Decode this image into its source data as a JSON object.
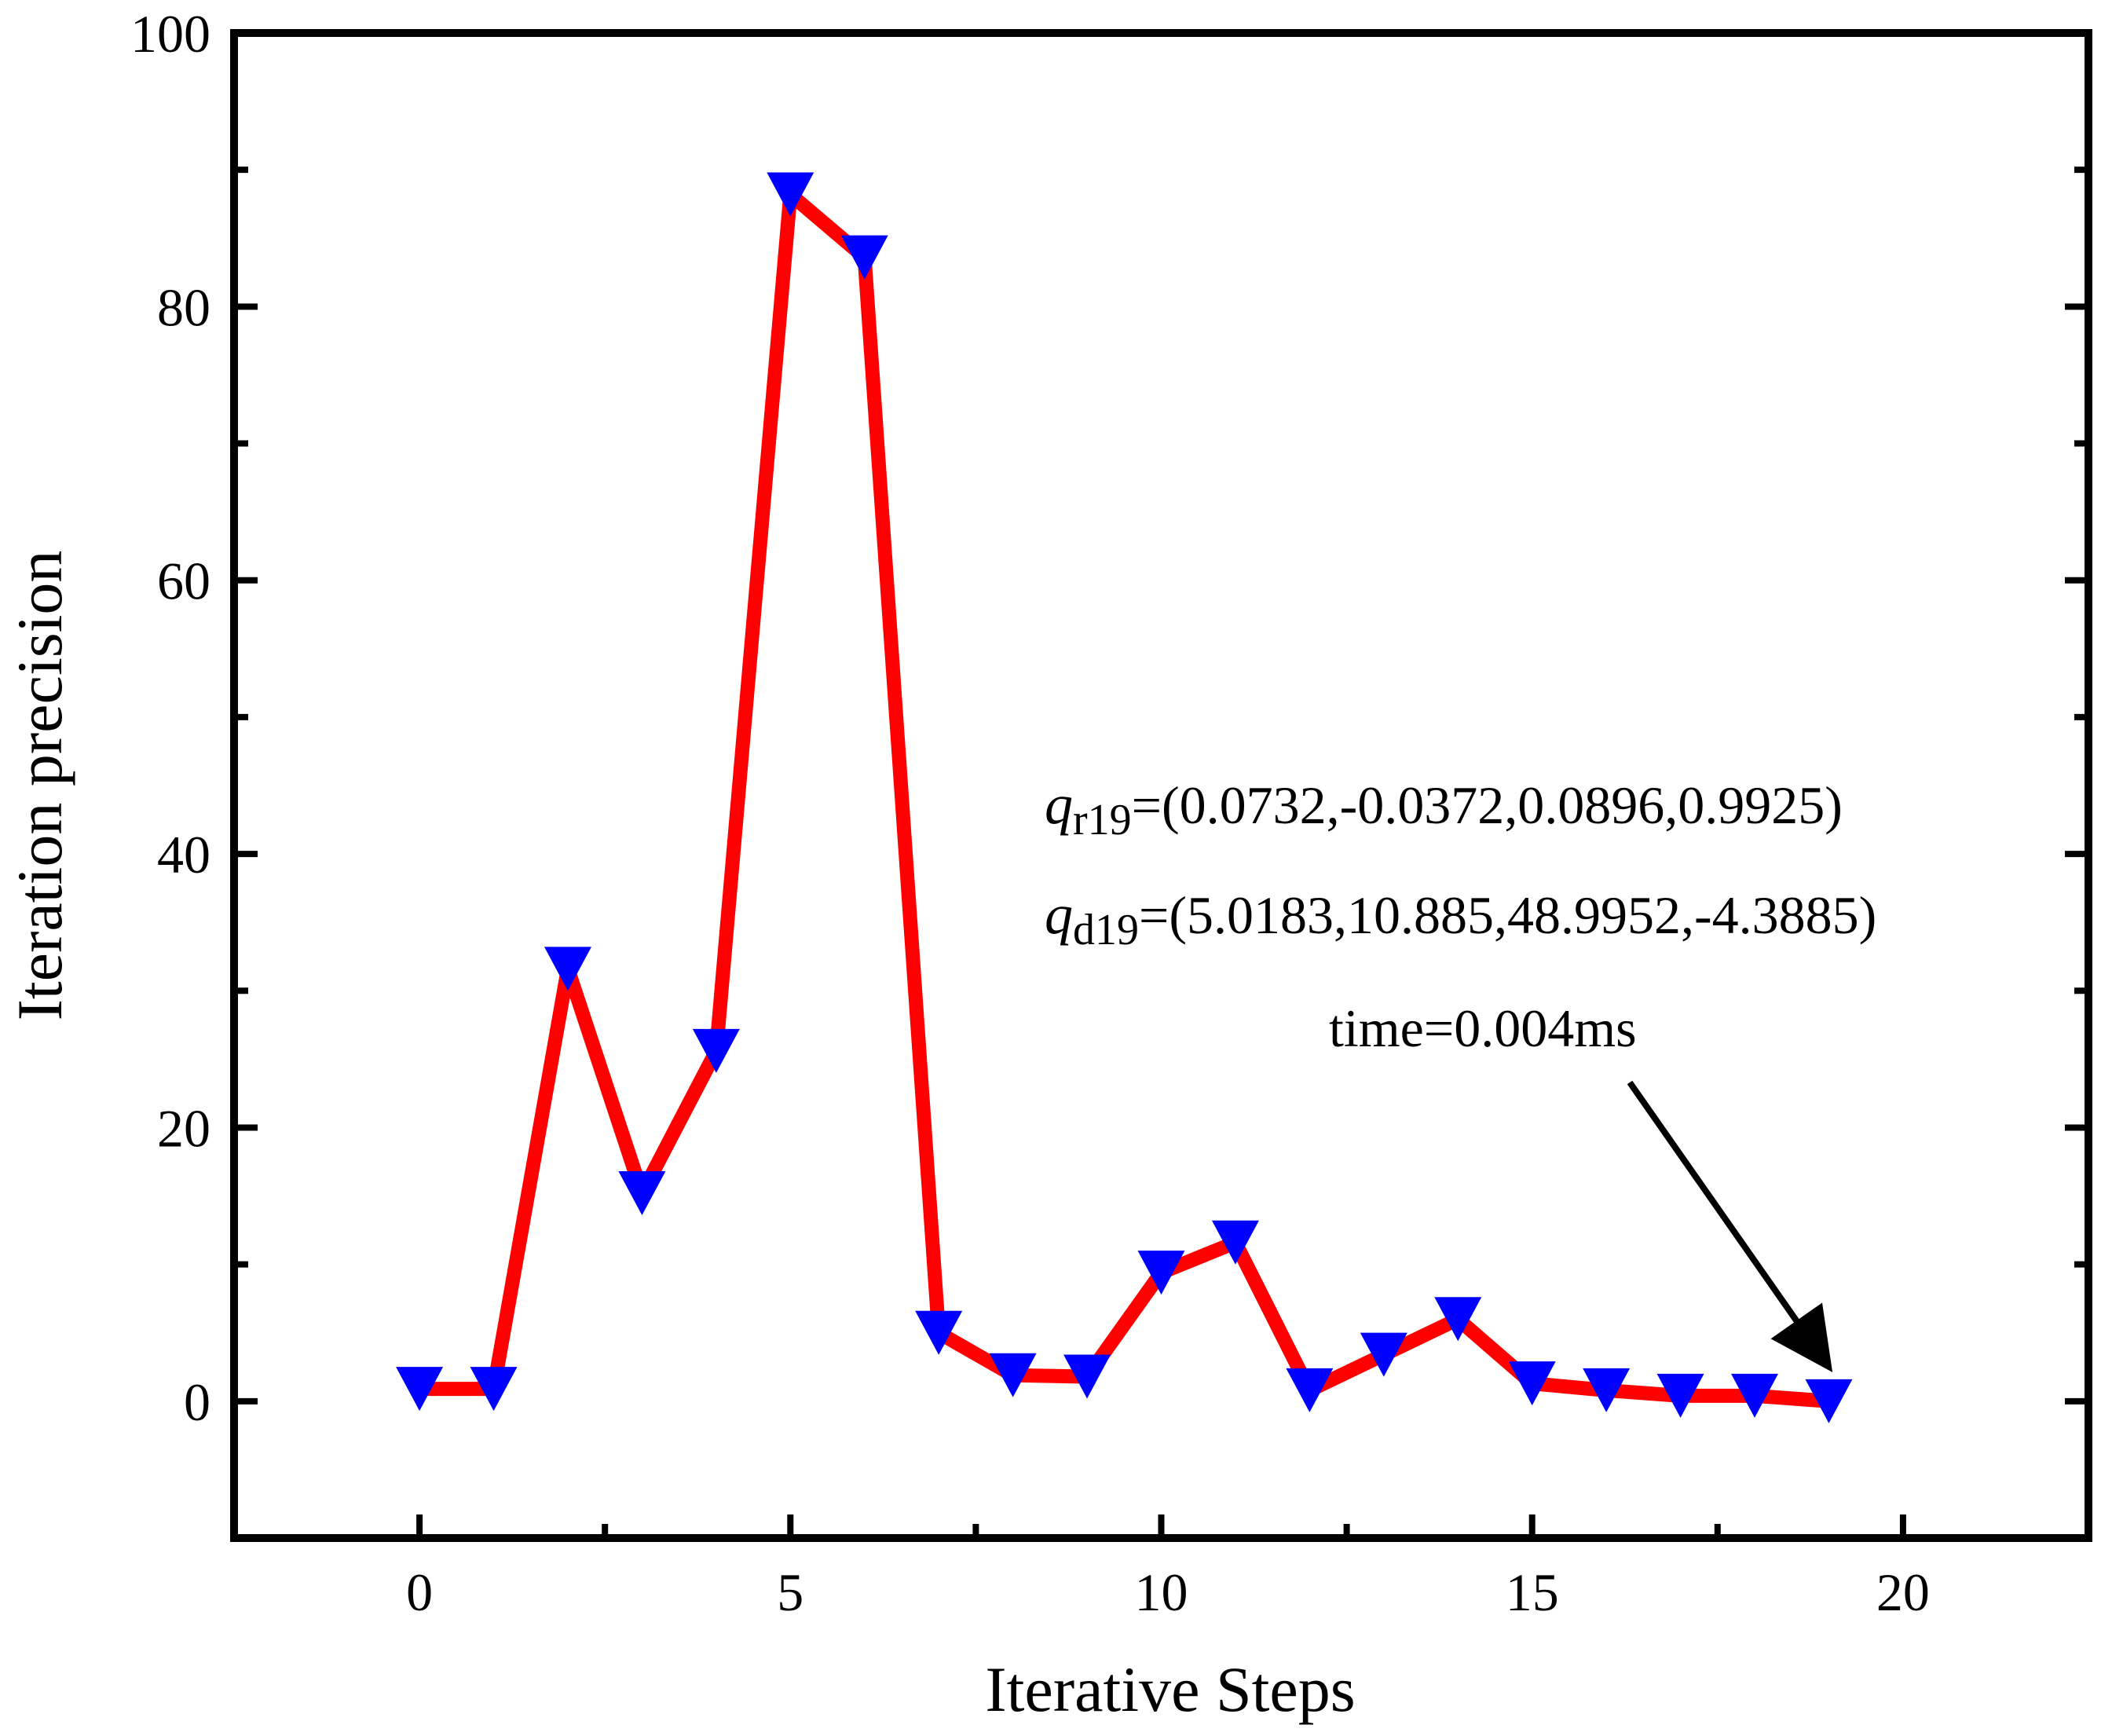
{
  "chart_data": {
    "type": "line",
    "title": "",
    "xlabel": "Iterative Steps",
    "ylabel": "Iteration precision",
    "xlim": [
      -2.5,
      22.5
    ],
    "ylim": [
      -10,
      100
    ],
    "x_ticks": [
      0,
      5,
      10,
      15,
      20
    ],
    "x_tick_labels": [
      "0",
      "5",
      "10",
      "15",
      "20"
    ],
    "y_ticks": [
      0,
      20,
      40,
      60,
      80,
      100
    ],
    "y_tick_labels": [
      "0",
      "20",
      "40",
      "60",
      "80",
      "100"
    ],
    "x_minor_step": 2.5,
    "y_minor_step": 10,
    "grid": false,
    "series": [
      {
        "name": "Iteration precision",
        "line_color": "#ff0000",
        "marker_color": "#0000ff",
        "marker": "triangle-down",
        "x": [
          0,
          1,
          2,
          3,
          4,
          5,
          6,
          7,
          8,
          9,
          10,
          11,
          12,
          13,
          14,
          15,
          16,
          17,
          18,
          19
        ],
        "values": [
          0.9,
          0.9,
          31.6,
          15.2,
          25.6,
          88.2,
          83.6,
          5.0,
          1.9,
          1.8,
          9.4,
          11.6,
          0.8,
          3.4,
          6.0,
          1.3,
          0.8,
          0.4,
          0.4,
          0.0
        ]
      }
    ],
    "annotations": {
      "qr_symbol": "q",
      "qr_subscript": "r19",
      "qr_values": "=(0.0732,-0.0372,0.0896,0.9925)",
      "qd_symbol": "q",
      "qd_subscript": "d19",
      "qd_values": "=(5.0183,10.885,48.9952,-4.3885)",
      "time_label": "time=0.004ms",
      "arrow_to": [
        19,
        2.5
      ]
    }
  }
}
